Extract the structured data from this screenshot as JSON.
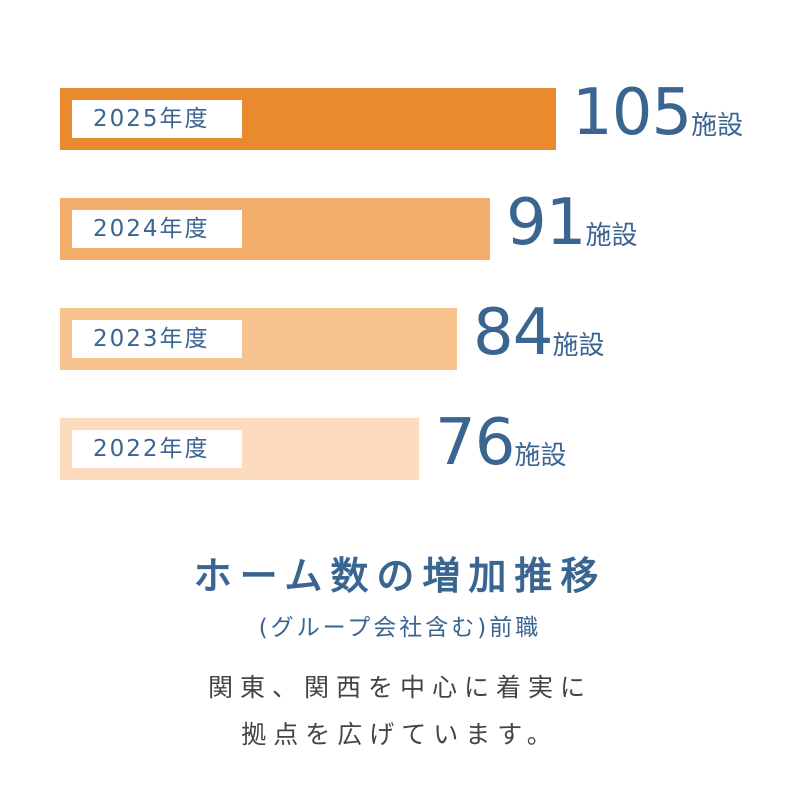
{
  "chart_data": {
    "type": "bar",
    "orientation": "horizontal",
    "categories": [
      "2025年度",
      "2024年度",
      "2023年度",
      "2022年度"
    ],
    "values": [
      105,
      91,
      84,
      76
    ],
    "unit": "施設",
    "colors": [
      "#e98a2f",
      "#f4ae6b",
      "#f7c38f",
      "#fddcbd"
    ],
    "title": "",
    "xlabel": "",
    "ylabel": ""
  },
  "headline": "ホーム数の増加推移",
  "subline": "(グループ会社含む)前職",
  "description": [
    "関東、関西を中心に着実に",
    "拠点を広げています。"
  ]
}
